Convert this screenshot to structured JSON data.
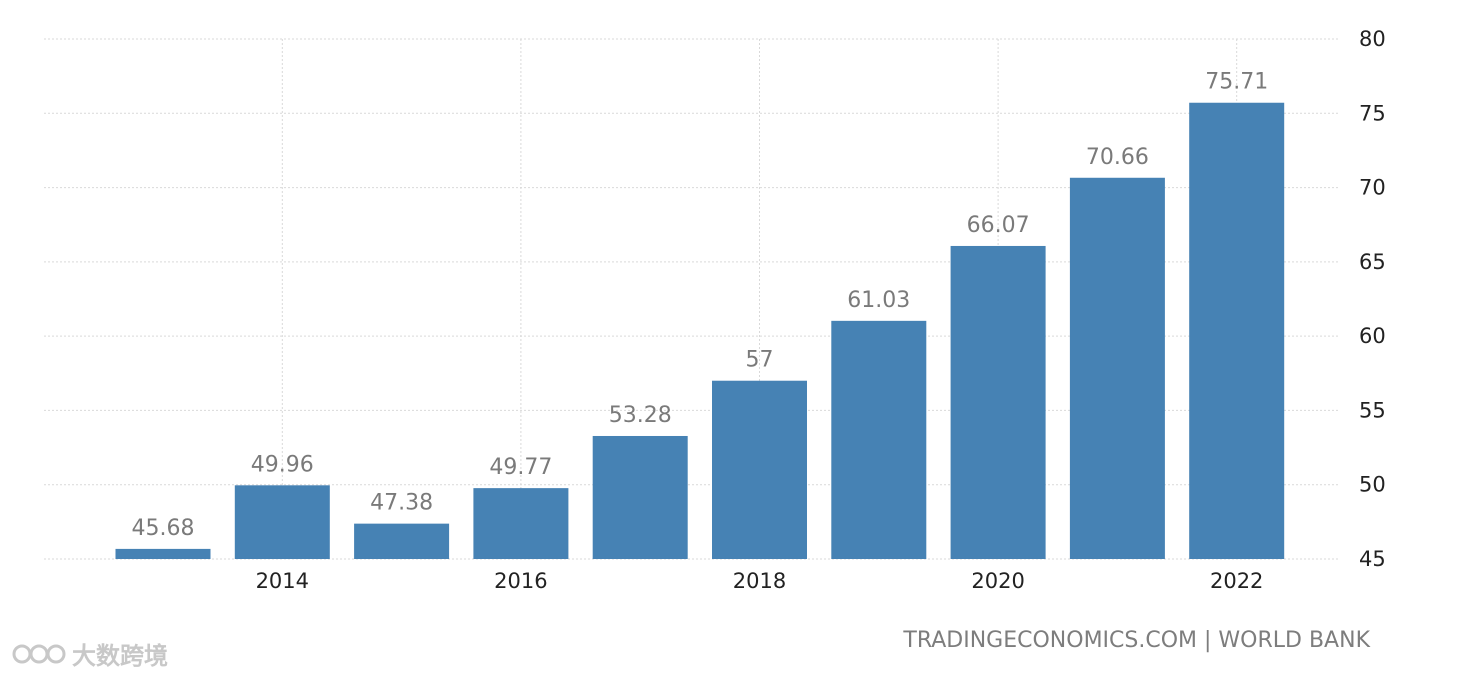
{
  "chart_data": {
    "type": "bar",
    "categories": [
      "2013",
      "2014",
      "2015",
      "2016",
      "2017",
      "2018",
      "2019",
      "2020",
      "2021",
      "2022"
    ],
    "values": [
      45.68,
      49.96,
      47.38,
      49.77,
      53.28,
      57,
      61.03,
      66.07,
      70.66,
      75.71
    ],
    "value_labels": [
      "45.68",
      "49.96",
      "47.38",
      "49.77",
      "53.28",
      "57",
      "61.03",
      "66.07",
      "70.66",
      "75.71"
    ],
    "x_tick_labels": [
      "2014",
      "2016",
      "2018",
      "2020",
      "2022"
    ],
    "y_ticks": [
      45,
      50,
      55,
      60,
      65,
      70,
      75,
      80
    ],
    "ylim": [
      45,
      80
    ],
    "y_axis_side": "right",
    "grid": true,
    "bar_color": "#4682b4",
    "title": "",
    "xlabel": "",
    "ylabel": ""
  },
  "source": "TRADINGECONOMICS.COM | WORLD BANK",
  "watermark": "大数跨境"
}
